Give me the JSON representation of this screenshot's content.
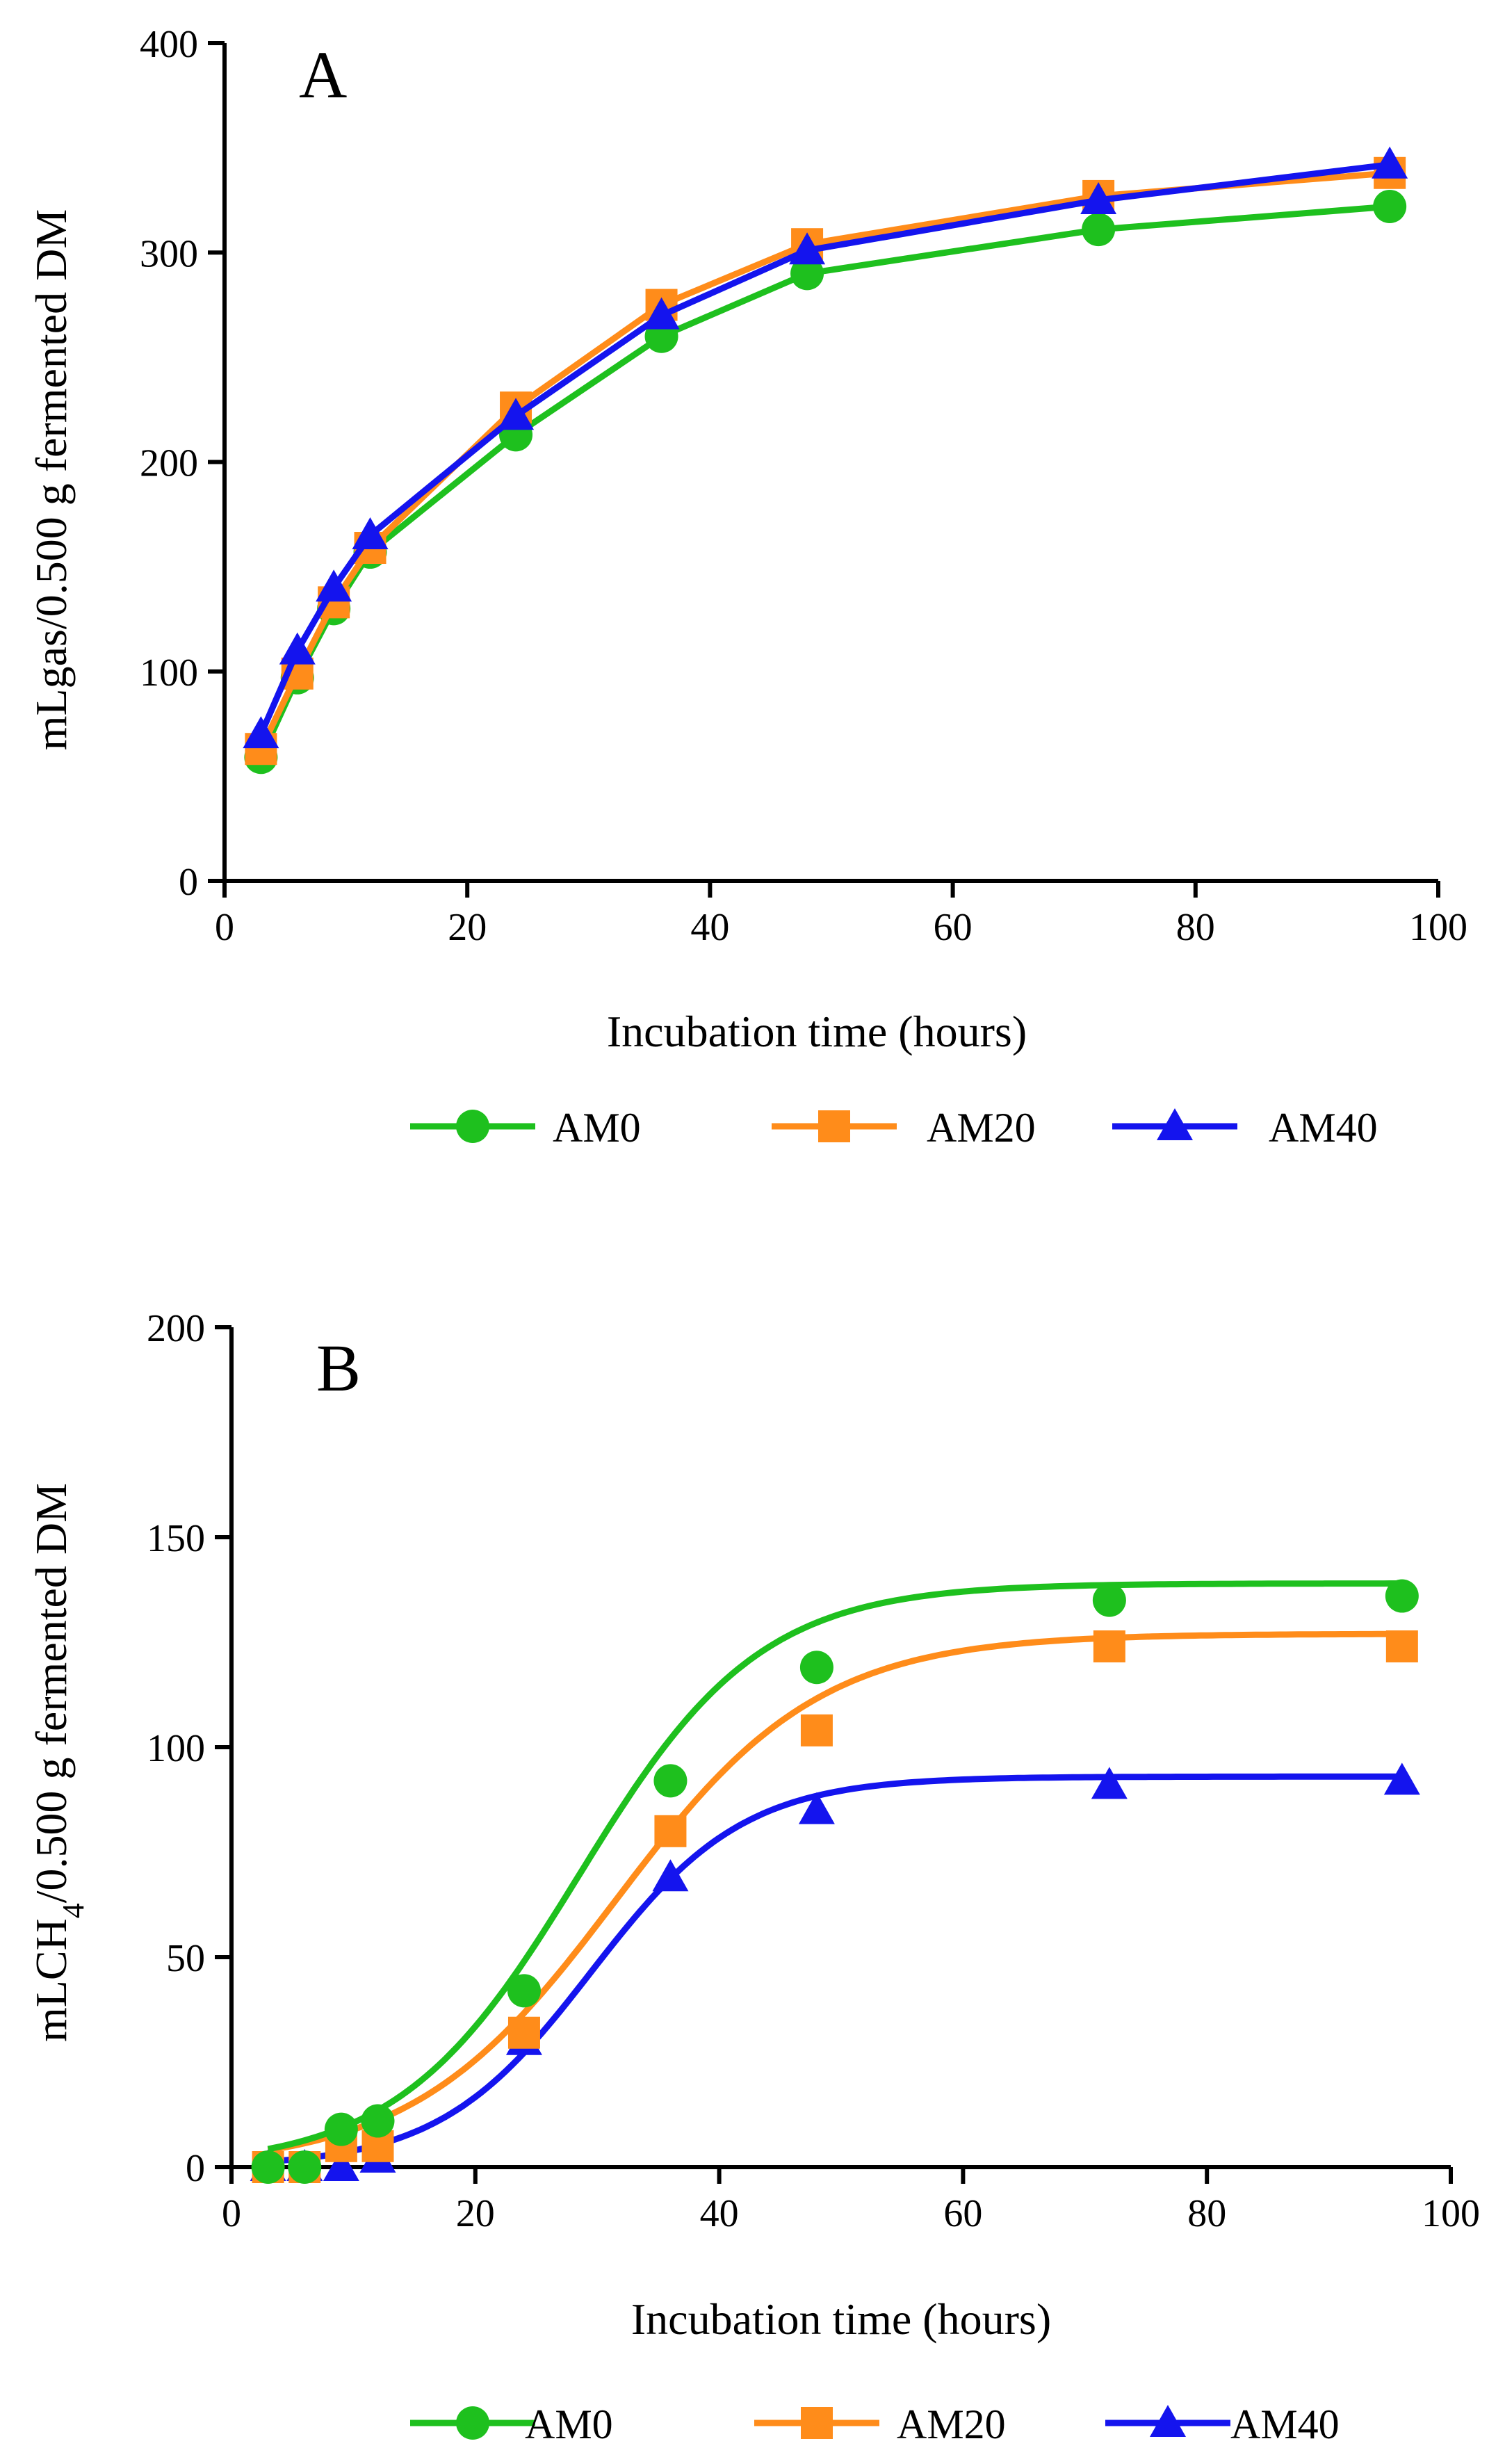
{
  "figure": {
    "colors": {
      "AM0": "#1ec01e",
      "AM20": "#ff8c1a",
      "AM40": "#1414ee"
    }
  },
  "chart_data": [
    {
      "type": "line",
      "panel_label": "A",
      "xlabel": "Incubation time (hours)",
      "ylabel": "mLgas/0.500 g  fermented DM",
      "xlim": [
        0,
        100
      ],
      "ylim": [
        0,
        400
      ],
      "xticks": [
        0,
        20,
        40,
        60,
        80,
        100
      ],
      "yticks": [
        0,
        100,
        200,
        300,
        400
      ],
      "grid": false,
      "legend_position": "bottom",
      "x": [
        3,
        6,
        9,
        12,
        24,
        36,
        48,
        72,
        96
      ],
      "series": [
        {
          "name": "AM0",
          "marker": "circle",
          "values": [
            59,
            97,
            130,
            157,
            213,
            260,
            290,
            311,
            322
          ]
        },
        {
          "name": "AM20",
          "marker": "square",
          "values": [
            63,
            99,
            133,
            159,
            226,
            275,
            304,
            327,
            338
          ]
        },
        {
          "name": "AM40",
          "marker": "triangle",
          "values": [
            70,
            110,
            140,
            165,
            222,
            270,
            301,
            325,
            342
          ]
        }
      ]
    },
    {
      "type": "line",
      "panel_label": "B",
      "xlabel": "Incubation time (hours)",
      "ylabel_main": "mLCH",
      "ylabel_sub": "4",
      "ylabel_rest": "/0.500 g  fermented DM",
      "xlim": [
        0,
        100
      ],
      "ylim": [
        0,
        200
      ],
      "xticks": [
        0,
        20,
        40,
        60,
        80,
        100
      ],
      "yticks": [
        0,
        50,
        100,
        150,
        200
      ],
      "grid": false,
      "legend_position": "bottom",
      "x": [
        3,
        6,
        9,
        12,
        24,
        36,
        48,
        72,
        96
      ],
      "series": [
        {
          "name": "AM0",
          "marker": "circle",
          "values": [
            0,
            0,
            9,
            11,
            42,
            92,
            119,
            135,
            136
          ],
          "fit": {
            "max": 139,
            "mid": 28.5,
            "k": 0.135
          }
        },
        {
          "name": "AM20",
          "marker": "square",
          "values": [
            0,
            0,
            5,
            5,
            32,
            80,
            104,
            124,
            124
          ],
          "fit": {
            "max": 127,
            "mid": 31.5,
            "k": 0.12
          }
        },
        {
          "name": "AM40",
          "marker": "triangle",
          "values": [
            0,
            0,
            0,
            2,
            30,
            69,
            85,
            91,
            92
          ],
          "fit": {
            "max": 93,
            "mid": 29.5,
            "k": 0.16
          }
        }
      ]
    }
  ]
}
